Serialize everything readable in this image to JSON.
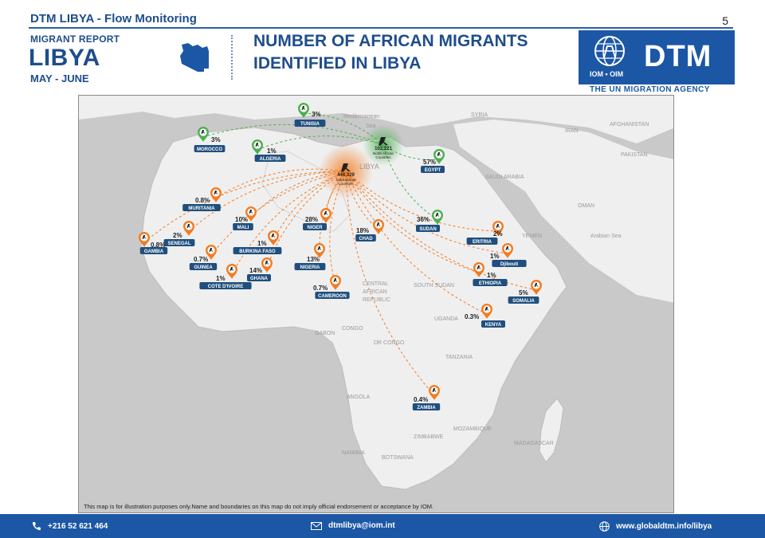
{
  "header": {
    "title": "DTM LIBYA - Flow Monitoring",
    "page_number": "5",
    "report_label": "MIGRANT REPORT",
    "country": "LIBYA",
    "period": "MAY - JUNE",
    "headline_line1": "NUMBER OF AFRICAN MIGRANTS",
    "headline_line2": "IDENTIFIED IN LIBYA",
    "logo_text": "DTM",
    "logo_sub": "IOM • OIM",
    "tagline": "THE UN MIGRATION AGENCY"
  },
  "map": {
    "disclaimer": "This map is for illustration purposes only.Name and boundaries on this map do not imply official  endorsement or acceptance by IOM.",
    "hubs": [
      {
        "id": "subsaharan",
        "value": "446,329",
        "label_line1": "SubSaharan",
        "label_line2": "Countries",
        "color": "#f47b20"
      },
      {
        "id": "northafrican",
        "value": "102,221",
        "label_line1": "North African",
        "label_line2": "Countries",
        "color": "#4caf50"
      }
    ],
    "countries": [
      {
        "name": "TUNISIA",
        "pct": "3%",
        "color": "#4caf50"
      },
      {
        "name": "MOROCCO",
        "pct": "3%",
        "color": "#4caf50"
      },
      {
        "name": "ALGERIA",
        "pct": "1%",
        "color": "#4caf50"
      },
      {
        "name": "EGYPT",
        "pct": "57%",
        "color": "#4caf50"
      },
      {
        "name": "SUDAN",
        "pct": "36%",
        "color": "#4caf50"
      },
      {
        "name": "MURITANIA",
        "pct": "0.8%",
        "color": "#f47b20"
      },
      {
        "name": "MALI",
        "pct": "10%",
        "color": "#f47b20"
      },
      {
        "name": "NIGER",
        "pct": "28%",
        "color": "#f47b20"
      },
      {
        "name": "CHAD",
        "pct": "18%",
        "color": "#f47b20"
      },
      {
        "name": "SENEGAL",
        "pct": "2%",
        "color": "#f47b20"
      },
      {
        "name": "GAMBIA",
        "pct": "0.8%",
        "color": "#f47b20"
      },
      {
        "name": "BURKINA FASO",
        "pct": "1%",
        "color": "#f47b20"
      },
      {
        "name": "GUINEA",
        "pct": "0.7%",
        "color": "#f47b20"
      },
      {
        "name": "NIGERIA",
        "pct": "13%",
        "color": "#f47b20"
      },
      {
        "name": "GHANA",
        "pct": "14%",
        "color": "#f47b20"
      },
      {
        "name": "COTE D'IVOIRE",
        "pct": "1%",
        "color": "#f47b20"
      },
      {
        "name": "CAMEROON",
        "pct": "0.7%",
        "color": "#f47b20"
      },
      {
        "name": "ERITRIA",
        "pct": "2%",
        "color": "#f47b20"
      },
      {
        "name": "Djibouti",
        "pct": "1%",
        "color": "#f47b20"
      },
      {
        "name": "ETHIOPIA",
        "pct": "1%",
        "color": "#f47b20"
      },
      {
        "name": "SOMALIA",
        "pct": "5%",
        "color": "#f47b20"
      },
      {
        "name": "KENYA",
        "pct": "0.3%",
        "color": "#f47b20"
      },
      {
        "name": "ZAMBIA",
        "pct": "0.4%",
        "color": "#f47b20"
      }
    ],
    "basemap_labels": [
      "Mediterranean",
      "Sea",
      "SYRIA",
      "IRAN",
      "AFGHANISTAN",
      "PAKISTAN",
      "SAUDI ARABIA",
      "OMAN",
      "YEMEN",
      "Arabian Sea",
      "SOUTH SUDAN",
      "CENTRAL",
      "AFRICAN",
      "REPUBLIC",
      "GABON",
      "CONGO",
      "DR CONGO",
      "UGANDA",
      "TANZANIA",
      "ANGOLA",
      "ZIMBABWE",
      "MOZAMBIQUE",
      "MADAGASCAR",
      "NAMIBIA",
      "BOTSWANA",
      "LIBYA"
    ]
  },
  "footer": {
    "phone": "+216 52 621 464",
    "email": "dtmlibya@iom.int",
    "website": "www.globaldtm.info/libya"
  }
}
